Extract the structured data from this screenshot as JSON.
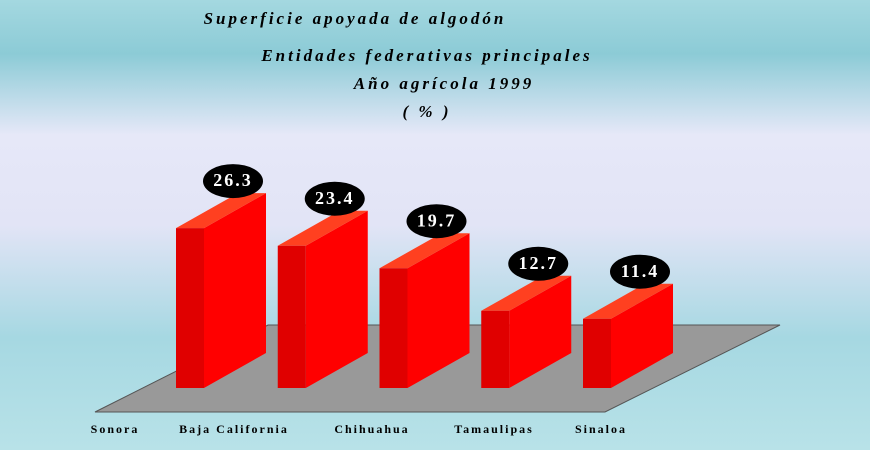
{
  "chart_data": {
    "type": "bar3d",
    "title": "Superficie apoyada de algodón",
    "subtitle": [
      "Entidades federativas principales",
      "Año agrícola 1999",
      "( % )"
    ],
    "categories": [
      "Sonora",
      "Baja California",
      "Chihuahua",
      "Tamaulipas",
      "Sinaloa"
    ],
    "values": [
      26.3,
      23.4,
      19.7,
      12.7,
      11.4
    ],
    "color": "#ff0000"
  }
}
